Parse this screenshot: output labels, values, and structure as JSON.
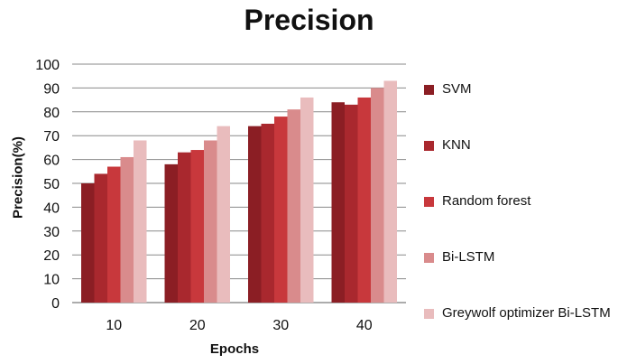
{
  "chart_data": {
    "type": "bar",
    "title": "Precision",
    "xlabel": "Epochs",
    "ylabel": "Precision(%)",
    "categories": [
      "10",
      "20",
      "30",
      "40"
    ],
    "ylim": [
      0,
      100
    ],
    "yticks": [
      "0",
      "10",
      "20",
      "30",
      "40",
      "50",
      "60",
      "70",
      "80",
      "90",
      "100"
    ],
    "grid": true,
    "legend_position": "right",
    "series": [
      {
        "name": "SVM",
        "values": [
          50,
          58,
          74,
          84
        ],
        "color": "#8b1e24"
      },
      {
        "name": "KNN",
        "values": [
          54,
          63,
          75,
          83
        ],
        "color": "#a9282e"
      },
      {
        "name": "Random forest",
        "values": [
          57,
          64,
          78,
          86
        ],
        "color": "#c8383c"
      },
      {
        "name": "Bi-LSTM",
        "values": [
          61,
          68,
          81,
          90
        ],
        "color": "#d98b8c"
      },
      {
        "name": "Greywolf optimizer Bi-LSTM",
        "values": [
          68,
          74,
          86,
          93
        ],
        "color": "#e9bcbd"
      }
    ]
  }
}
